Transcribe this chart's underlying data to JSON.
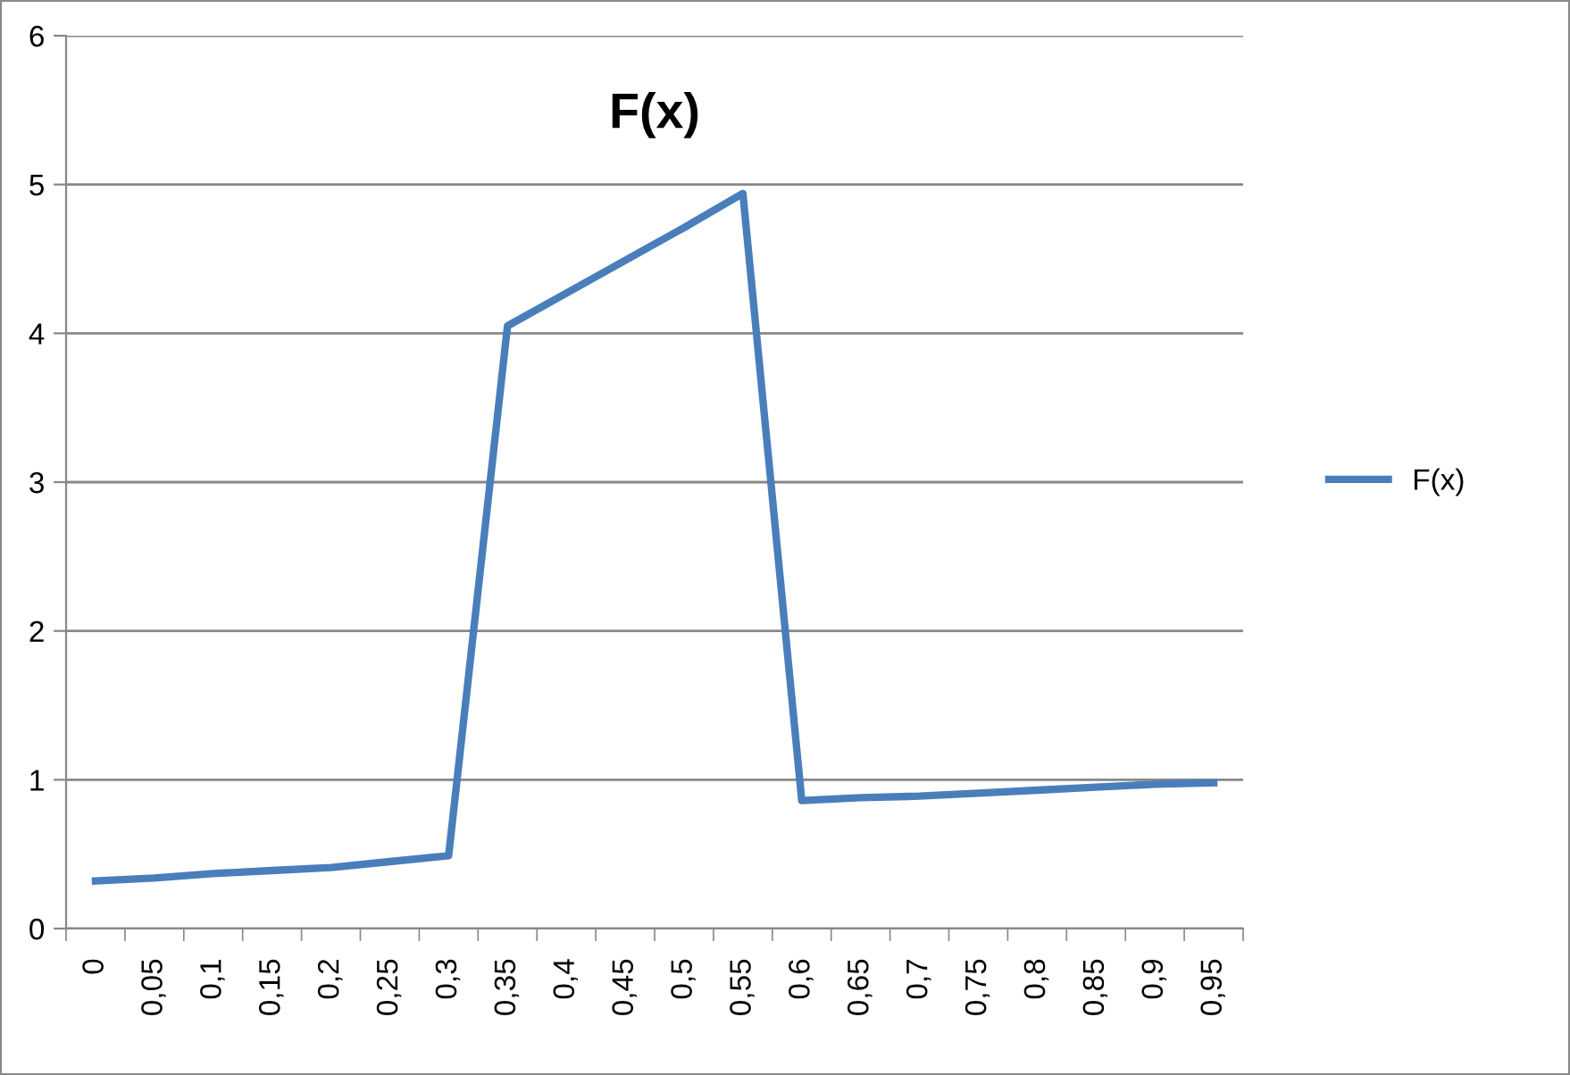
{
  "chart_data": {
    "type": "line",
    "title": "F(x)",
    "categories": [
      "0",
      "0,05",
      "0,1",
      "0,15",
      "0,2",
      "0,25",
      "0,3",
      "0,35",
      "0,4",
      "0,45",
      "0,5",
      "0,55",
      "0,6",
      "0,65",
      "0,7",
      "0,75",
      "0,8",
      "0,85",
      "0,9",
      "0,95"
    ],
    "series": [
      {
        "name": "F(x)",
        "color": "#4a7ebb",
        "values": [
          0.32,
          0.34,
          0.37,
          0.39,
          0.41,
          0.45,
          0.49,
          4.05,
          4.27,
          4.49,
          4.71,
          4.94,
          0.86,
          0.88,
          0.89,
          0.91,
          0.93,
          0.95,
          0.97,
          0.98
        ]
      }
    ],
    "ylim": [
      0,
      6
    ],
    "yticks": [
      0,
      1,
      2,
      3,
      4,
      5,
      6
    ],
    "grid": "y",
    "legend": "right",
    "marker": "none",
    "line_style": "solid"
  }
}
